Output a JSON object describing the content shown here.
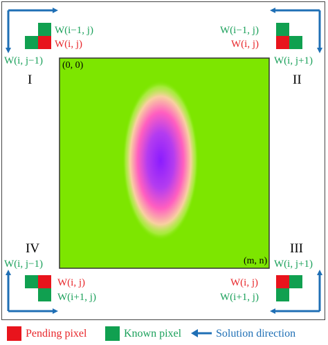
{
  "colors": {
    "pending": "#e8141c",
    "known": "#10a050",
    "arrow": "#1f6fb5",
    "field_green": "#7de600",
    "field_blob_center": "#9a1cff",
    "field_blob_edge": "#ff5fc0"
  },
  "corners": {
    "I": {
      "numeral": "I",
      "top_label": "W(i−1, j)",
      "current_label": "W(i, j)",
      "side_label": "W(i, j−1)"
    },
    "II": {
      "numeral": "II",
      "top_label": "W(i−1, j)",
      "current_label": "W(i, j)",
      "side_label": "W(i, j+1)"
    },
    "III": {
      "numeral": "III",
      "side_label": "W(i, j+1)",
      "current_label": "W(i, j)",
      "bottom_label": "W(i+1, j)"
    },
    "IV": {
      "numeral": "IV",
      "side_label": "W(i, j−1)",
      "current_label": "W(i, j)",
      "bottom_label": "W(i+1, j)"
    }
  },
  "field": {
    "origin_label": "(0, 0)",
    "end_label": "(m, n)"
  },
  "legend": {
    "pending": "Pending pixel",
    "known": "Known pixel",
    "direction": "Solution direction"
  }
}
